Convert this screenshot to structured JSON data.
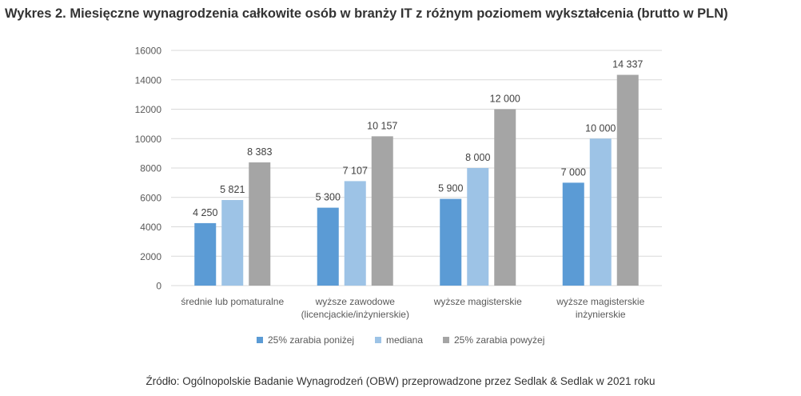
{
  "chart_data": {
    "type": "bar",
    "title": "Wykres 2. Miesięczne wynagrodzenia całkowite osób w branży IT z różnym poziomem wykształcenia (brutto w PLN)",
    "categories": [
      [
        "średnie lub pomaturalne"
      ],
      [
        "wyższe zawodowe",
        "(licencjackie/inżynierskie)"
      ],
      [
        "wyższe magisterskie"
      ],
      [
        "wyższe magisterskie",
        "inżynierskie"
      ]
    ],
    "series": [
      {
        "name": "25% zarabia poniżej",
        "color": "#5b9bd5",
        "values": [
          4250,
          5300,
          5900,
          7000
        ],
        "labels": [
          "4 250",
          "5 300",
          "5 900",
          "7 000"
        ]
      },
      {
        "name": "mediana",
        "color": "#9dc3e6",
        "values": [
          5821,
          7107,
          8000,
          10000
        ],
        "labels": [
          "5 821",
          "7 107",
          "8 000",
          "10 000"
        ]
      },
      {
        "name": "25% zarabia powyżej",
        "color": "#a5a5a5",
        "values": [
          8383,
          10157,
          12000,
          14337
        ],
        "labels": [
          "8 383",
          "10 157",
          "12 000",
          "14 337"
        ]
      }
    ],
    "ylim": [
      0,
      16000
    ],
    "yticks": [
      0,
      2000,
      4000,
      6000,
      8000,
      10000,
      12000,
      14000,
      16000
    ],
    "grid": true,
    "legend": "bottom",
    "xlabel": "",
    "ylabel": ""
  },
  "source_note": "Źródło: Ogólnopolskie Badanie Wynagrodzeń (OBW) przeprowadzone przez Sedlak & Sedlak w 2021 roku"
}
